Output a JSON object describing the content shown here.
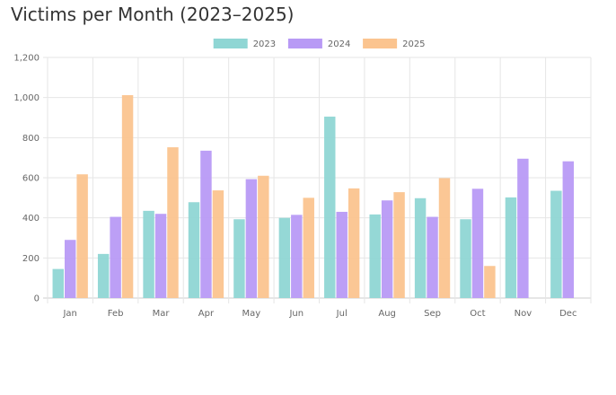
{
  "chart_data": {
    "type": "bar",
    "title": "Victims per Month (2023–2025)",
    "xlabel": "",
    "ylabel": "",
    "ylim": [
      0,
      1200
    ],
    "yticks": [
      0,
      200,
      400,
      600,
      800,
      1000,
      1200
    ],
    "ytick_labels": [
      "0",
      "200",
      "400",
      "600",
      "800",
      "1,000",
      "1,200"
    ],
    "grid": true,
    "legend_position": "top-center",
    "categories": [
      "Jan",
      "Feb",
      "Mar",
      "Apr",
      "May",
      "Jun",
      "Jul",
      "Aug",
      "Sep",
      "Oct",
      "Nov",
      "Dec"
    ],
    "series": [
      {
        "name": "2023",
        "color": "#8fd6d4",
        "values": [
          145,
          220,
          435,
          478,
          393,
          400,
          905,
          417,
          498,
          393,
          502,
          535
        ]
      },
      {
        "name": "2024",
        "color": "#b89af5",
        "values": [
          290,
          405,
          420,
          735,
          593,
          415,
          430,
          487,
          405,
          545,
          695,
          682
        ]
      },
      {
        "name": "2025",
        "color": "#fbc48f",
        "values": [
          617,
          1012,
          752,
          537,
          610,
          500,
          547,
          528,
          598,
          160,
          null,
          null
        ]
      }
    ]
  }
}
